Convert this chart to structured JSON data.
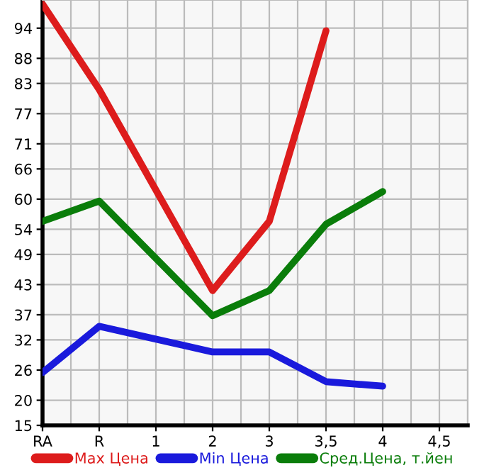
{
  "chart_data": {
    "type": "line",
    "categories": [
      "RA",
      "R",
      "1",
      "2",
      "3",
      "3,5",
      "4",
      "4,5"
    ],
    "series": [
      {
        "name": "Max Цена",
        "color": "#dd1c1c",
        "values": [
          98.8,
          81.8,
          null,
          41.8,
          55.6,
          93.5,
          null,
          null
        ]
      },
      {
        "name": "Min Цена",
        "color": "#1a1adc",
        "values": [
          25.5,
          34.7,
          null,
          29.6,
          29.6,
          23.7,
          22.8,
          null
        ]
      },
      {
        "name": "Сред.Цена, т.йен",
        "color": "#0a7d0a",
        "values": [
          55.6,
          59.6,
          null,
          36.8,
          41.8,
          55.0,
          61.5,
          null
        ]
      }
    ],
    "ylim": [
      15,
      99.6
    ],
    "yticks": [
      15,
      20,
      26,
      32,
      37,
      43,
      49,
      54,
      60,
      66,
      71,
      77,
      83,
      88,
      94
    ],
    "grid": true,
    "legend": "bottom",
    "marker": "none",
    "line_style": "solid"
  }
}
